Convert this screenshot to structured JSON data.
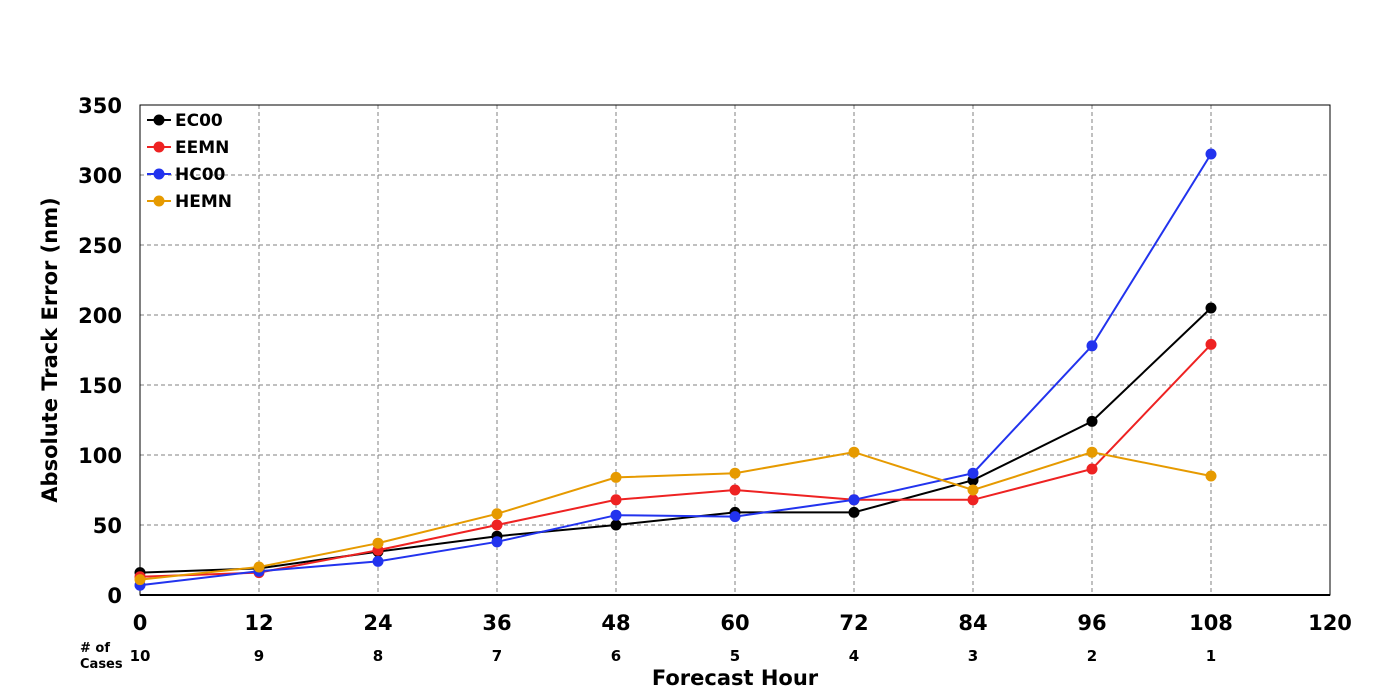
{
  "chart_data": {
    "type": "line",
    "xlabel": "Forecast Hour",
    "ylabel": "Absolute Track Error (nm)",
    "xlim": [
      0,
      120
    ],
    "ylim": [
      0,
      350
    ],
    "x_ticks": [
      0,
      12,
      24,
      36,
      48,
      60,
      72,
      84,
      96,
      108,
      120
    ],
    "y_ticks": [
      0,
      50,
      100,
      150,
      200,
      250,
      300,
      350
    ],
    "grid": true,
    "legend_position": "top-left",
    "x": [
      0,
      12,
      24,
      36,
      48,
      60,
      72,
      84,
      96,
      108
    ],
    "cases_label": "# of Cases",
    "cases_label_lines": [
      "# of",
      "Cases"
    ],
    "cases": [
      10,
      9,
      8,
      7,
      6,
      5,
      4,
      3,
      2,
      1
    ],
    "series": [
      {
        "name": "EC00",
        "color": "#000000",
        "values": [
          16,
          19,
          31,
          42,
          50,
          59,
          59,
          82,
          124,
          205
        ]
      },
      {
        "name": "EEMN",
        "color": "#ee2222",
        "values": [
          13,
          16,
          32,
          50,
          68,
          75,
          68,
          68,
          90,
          179
        ]
      },
      {
        "name": "HC00",
        "color": "#2233ee",
        "values": [
          7,
          17,
          24,
          38,
          57,
          56,
          68,
          87,
          178,
          315
        ]
      },
      {
        "name": "HEMN",
        "color": "#e69a00",
        "values": [
          11,
          20,
          37,
          58,
          84,
          87,
          102,
          75,
          102,
          85
        ]
      }
    ]
  }
}
